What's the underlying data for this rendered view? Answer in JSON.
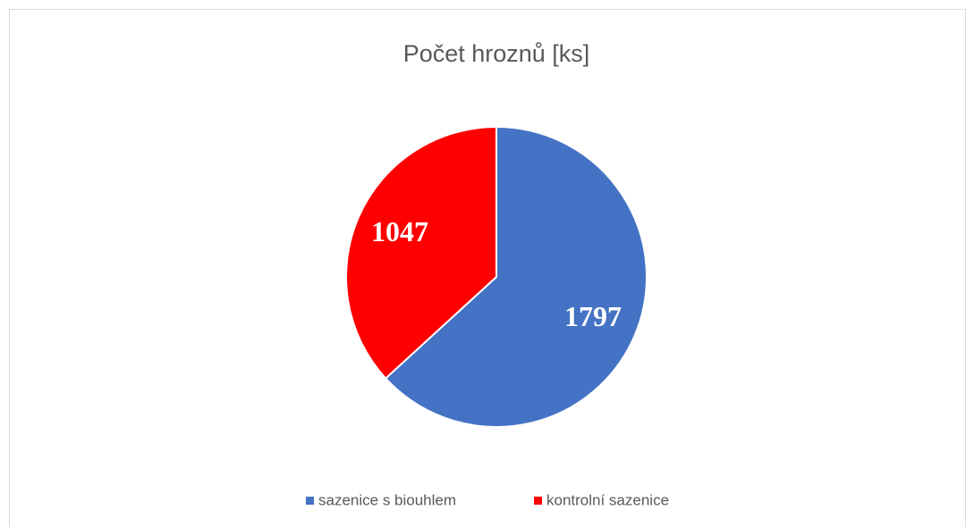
{
  "chart_data": {
    "type": "pie",
    "title": "Počet hroznů [ks]",
    "categories": [
      "sazenice s biouhlem",
      "kontrolní sazenice"
    ],
    "values": [
      1797,
      1047
    ],
    "colors": [
      "#4472c4",
      "#ff0000"
    ],
    "legend": "bottom"
  }
}
